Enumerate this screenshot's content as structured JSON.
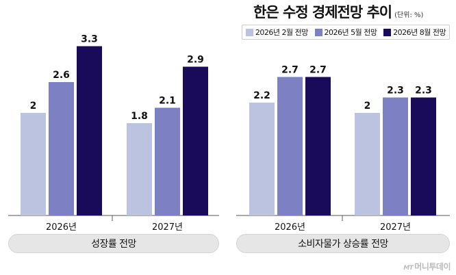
{
  "header": {
    "title": "한은 수정 경제전망 추이",
    "unit": "(단위: %)"
  },
  "legend": [
    {
      "label": "2026년 2월 전망",
      "color": "#bcc3e0"
    },
    {
      "label": "2026년 5월 전망",
      "color": "#7e80c4"
    },
    {
      "label": "2026년 8월 전망",
      "color": "#1a0b5a"
    }
  ],
  "chart_data": [
    {
      "type": "bar",
      "title": "성장률 전망",
      "categories": [
        "2026년",
        "2027년"
      ],
      "series": [
        {
          "name": "2026년 2월 전망",
          "values": [
            2,
            1.8
          ],
          "labels": [
            "2",
            "1.8"
          ]
        },
        {
          "name": "2026년 5월 전망",
          "values": [
            2.6,
            2.1
          ],
          "labels": [
            "2.6",
            "2.1"
          ]
        },
        {
          "name": "2026년 8월 전망",
          "values": [
            3.3,
            2.9
          ],
          "labels": [
            "3.3",
            "2.9"
          ]
        }
      ],
      "ylim": [
        0,
        3.7
      ]
    },
    {
      "type": "bar",
      "title": "소비자물가 상승률 전망",
      "categories": [
        "2026년",
        "2027년"
      ],
      "series": [
        {
          "name": "2026년 2월 전망",
          "values": [
            2.2,
            2
          ],
          "labels": [
            "2.2",
            "2"
          ]
        },
        {
          "name": "2026년 5월 전망",
          "values": [
            2.7,
            2.3
          ],
          "labels": [
            "2.7",
            "2.3"
          ]
        },
        {
          "name": "2026년 8월 전망",
          "values": [
            2.7,
            2.3
          ],
          "labels": [
            "2.7",
            "2.3"
          ]
        }
      ],
      "ylim": [
        0,
        3.7
      ]
    }
  ],
  "brand": {
    "prefix": "MT",
    "name": "머니투데이"
  }
}
